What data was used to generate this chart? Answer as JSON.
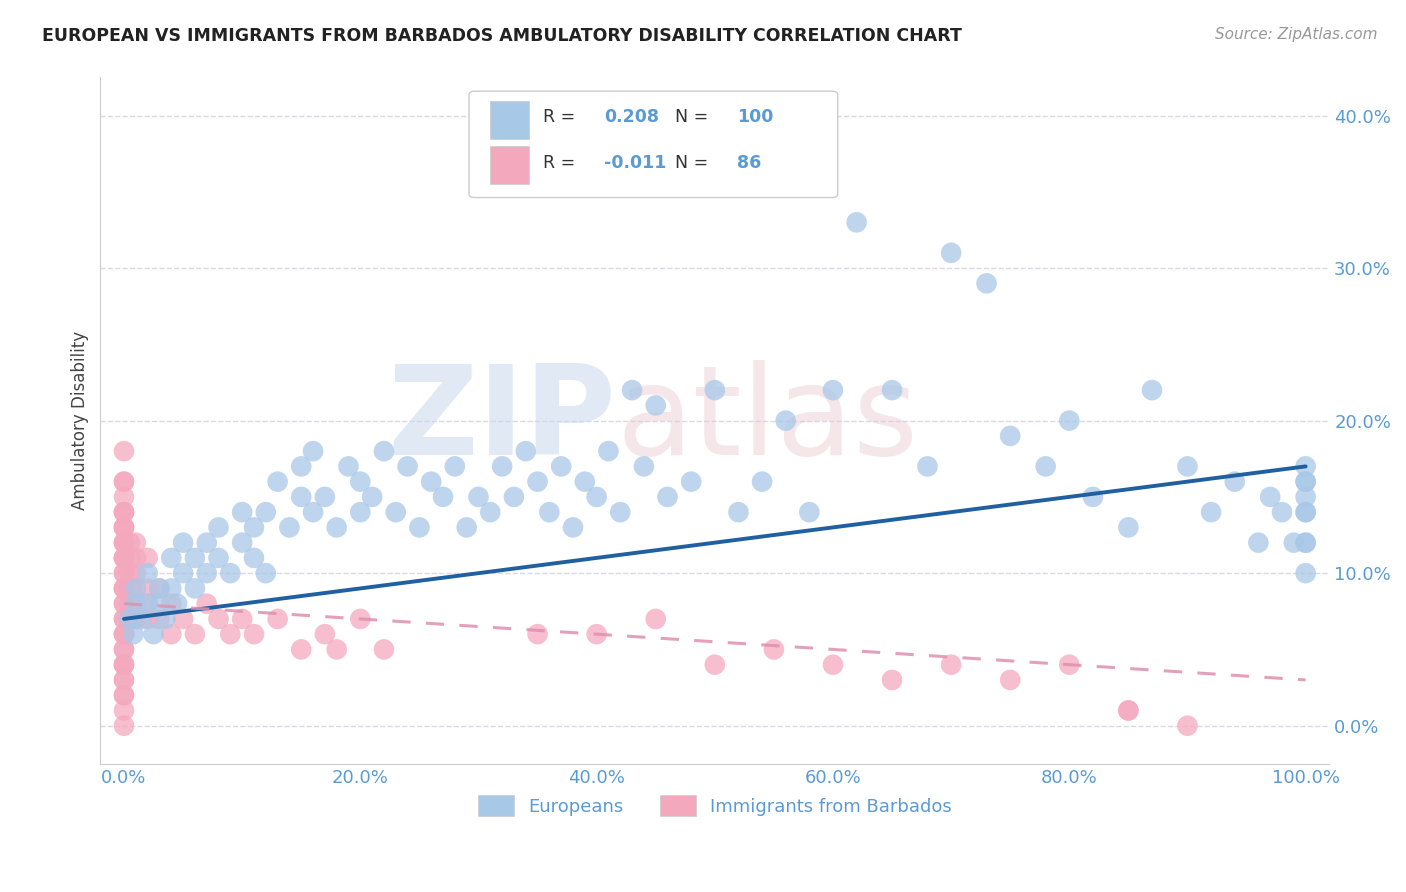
{
  "title": "EUROPEAN VS IMMIGRANTS FROM BARBADOS AMBULATORY DISABILITY CORRELATION CHART",
  "source": "Source: ZipAtlas.com",
  "ylabel": "Ambulatory Disability",
  "ylim": [
    -0.025,
    0.425
  ],
  "xlim": [
    -0.02,
    1.02
  ],
  "blue_R": 0.208,
  "blue_N": 100,
  "pink_R": -0.011,
  "pink_N": 86,
  "blue_color": "#A8C8E8",
  "blue_edge_color": "#85AED4",
  "pink_color": "#F4A8BE",
  "pink_edge_color": "#E090A8",
  "blue_line_color": "#2060A0",
  "pink_line_color": "#E090B0",
  "legend_blue_label": "Europeans",
  "legend_pink_label": "Immigrants from Barbados",
  "watermark": "ZIPatlas",
  "background_color": "#FFFFFF",
  "grid_color": "#D8D8E8",
  "title_color": "#222222",
  "axis_label_color": "#444444",
  "tick_color": "#5B9BD5",
  "ytick_vals": [
    0.0,
    0.1,
    0.2,
    0.3,
    0.4
  ],
  "ytick_labels": [
    "0.0%",
    "10.0%",
    "20.0%",
    "30.0%",
    "40.0%"
  ],
  "xtick_vals": [
    0.0,
    0.2,
    0.4,
    0.6,
    0.8,
    1.0
  ],
  "xtick_labels": [
    "0.0%",
    "20.0%",
    "40.0%",
    "60.0%",
    "80.0%",
    "100.0%"
  ],
  "blue_trend_start": 0.07,
  "blue_trend_end": 0.17,
  "pink_trend_start": 0.08,
  "pink_trend_end": 0.03,
  "blue_x": [
    0.005,
    0.008,
    0.01,
    0.01,
    0.015,
    0.02,
    0.02,
    0.025,
    0.03,
    0.03,
    0.035,
    0.04,
    0.04,
    0.045,
    0.05,
    0.05,
    0.06,
    0.06,
    0.07,
    0.07,
    0.08,
    0.08,
    0.09,
    0.1,
    0.1,
    0.11,
    0.11,
    0.12,
    0.12,
    0.13,
    0.14,
    0.15,
    0.15,
    0.16,
    0.16,
    0.17,
    0.18,
    0.19,
    0.2,
    0.2,
    0.21,
    0.22,
    0.23,
    0.24,
    0.25,
    0.26,
    0.27,
    0.28,
    0.29,
    0.3,
    0.31,
    0.32,
    0.33,
    0.34,
    0.35,
    0.36,
    0.37,
    0.38,
    0.39,
    0.4,
    0.41,
    0.42,
    0.43,
    0.44,
    0.45,
    0.46,
    0.48,
    0.5,
    0.52,
    0.54,
    0.56,
    0.58,
    0.6,
    0.62,
    0.65,
    0.68,
    0.7,
    0.73,
    0.75,
    0.78,
    0.8,
    0.82,
    0.85,
    0.87,
    0.9,
    0.92,
    0.94,
    0.96,
    0.97,
    0.98,
    0.99,
    1.0,
    1.0,
    1.0,
    1.0,
    1.0,
    1.0,
    1.0,
    1.0,
    1.0
  ],
  "blue_y": [
    0.07,
    0.06,
    0.08,
    0.09,
    0.07,
    0.08,
    0.1,
    0.06,
    0.08,
    0.09,
    0.07,
    0.09,
    0.11,
    0.08,
    0.1,
    0.12,
    0.09,
    0.11,
    0.1,
    0.12,
    0.11,
    0.13,
    0.1,
    0.12,
    0.14,
    0.11,
    0.13,
    0.1,
    0.14,
    0.16,
    0.13,
    0.15,
    0.17,
    0.14,
    0.18,
    0.15,
    0.13,
    0.17,
    0.14,
    0.16,
    0.15,
    0.18,
    0.14,
    0.17,
    0.13,
    0.16,
    0.15,
    0.17,
    0.13,
    0.15,
    0.14,
    0.17,
    0.15,
    0.18,
    0.16,
    0.14,
    0.17,
    0.13,
    0.16,
    0.15,
    0.18,
    0.14,
    0.22,
    0.17,
    0.21,
    0.15,
    0.16,
    0.22,
    0.14,
    0.16,
    0.2,
    0.14,
    0.22,
    0.33,
    0.22,
    0.17,
    0.31,
    0.29,
    0.19,
    0.17,
    0.2,
    0.15,
    0.13,
    0.22,
    0.17,
    0.14,
    0.16,
    0.12,
    0.15,
    0.14,
    0.12,
    0.17,
    0.15,
    0.12,
    0.14,
    0.16,
    0.12,
    0.14,
    0.1,
    0.16
  ],
  "pink_x": [
    0.0,
    0.0,
    0.0,
    0.0,
    0.0,
    0.0,
    0.0,
    0.0,
    0.0,
    0.0,
    0.0,
    0.0,
    0.0,
    0.0,
    0.0,
    0.0,
    0.0,
    0.0,
    0.0,
    0.0,
    0.0,
    0.0,
    0.0,
    0.005,
    0.005,
    0.005,
    0.005,
    0.005,
    0.005,
    0.01,
    0.01,
    0.01,
    0.01,
    0.01,
    0.01,
    0.01,
    0.02,
    0.02,
    0.02,
    0.02,
    0.03,
    0.03,
    0.04,
    0.04,
    0.05,
    0.06,
    0.07,
    0.08,
    0.09,
    0.1,
    0.11,
    0.13,
    0.15,
    0.17,
    0.18,
    0.2,
    0.22,
    0.35,
    0.4,
    0.45,
    0.5,
    0.55,
    0.6,
    0.65,
    0.7,
    0.75,
    0.8,
    0.85,
    0.0,
    0.0,
    0.0,
    0.0,
    0.0,
    0.0,
    0.0,
    0.0,
    0.0,
    0.0,
    0.0,
    0.0,
    0.0,
    0.0,
    0.0,
    0.0,
    0.85,
    0.9
  ],
  "pink_y": [
    0.16,
    0.13,
    0.11,
    0.09,
    0.15,
    0.12,
    0.08,
    0.14,
    0.1,
    0.07,
    0.13,
    0.11,
    0.09,
    0.06,
    0.12,
    0.1,
    0.08,
    0.14,
    0.07,
    0.11,
    0.09,
    0.13,
    0.06,
    0.12,
    0.09,
    0.07,
    0.11,
    0.08,
    0.1,
    0.11,
    0.09,
    0.07,
    0.12,
    0.08,
    0.1,
    0.07,
    0.09,
    0.07,
    0.11,
    0.08,
    0.09,
    0.07,
    0.08,
    0.06,
    0.07,
    0.06,
    0.08,
    0.07,
    0.06,
    0.07,
    0.06,
    0.07,
    0.05,
    0.06,
    0.05,
    0.07,
    0.05,
    0.06,
    0.06,
    0.07,
    0.04,
    0.05,
    0.04,
    0.03,
    0.04,
    0.03,
    0.04,
    0.01,
    0.18,
    0.04,
    0.05,
    0.03,
    0.06,
    0.02,
    0.0,
    0.04,
    0.05,
    0.02,
    0.01,
    0.03,
    0.16,
    0.14,
    0.12,
    0.04,
    0.01,
    0.0
  ]
}
